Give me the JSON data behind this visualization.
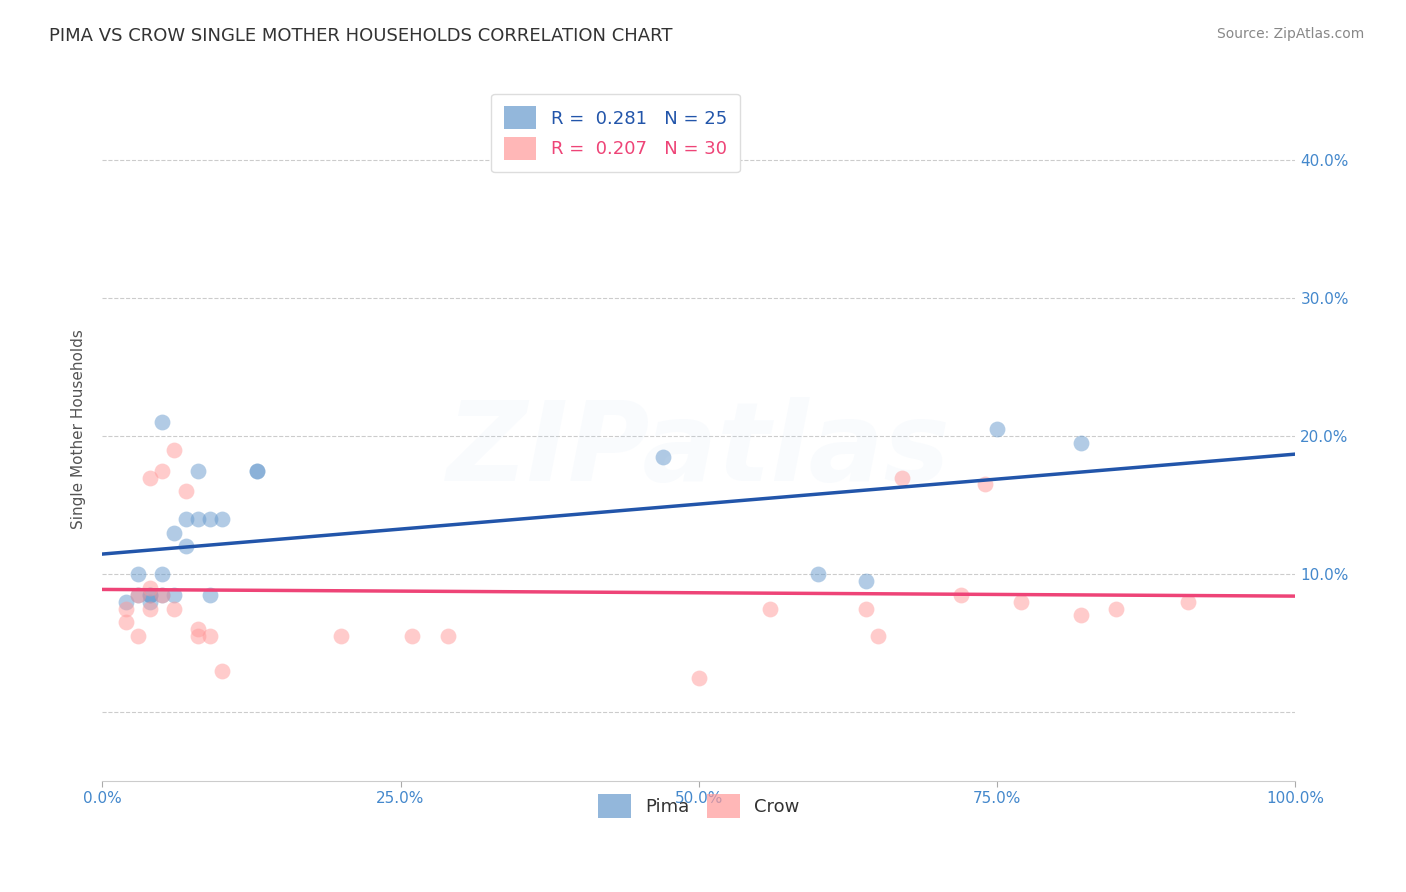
{
  "title": "PIMA VS CROW SINGLE MOTHER HOUSEHOLDS CORRELATION CHART",
  "source_text": "Source: ZipAtlas.com",
  "ylabel": "Single Mother Households",
  "xlim": [
    0,
    1
  ],
  "ylim": [
    -0.05,
    0.46
  ],
  "ytick_values": [
    0.0,
    0.1,
    0.2,
    0.3,
    0.4
  ],
  "ytick_labels_right": [
    "",
    "10.0%",
    "20.0%",
    "30.0%",
    "40.0%"
  ],
  "xtick_labels": [
    "0.0%",
    "25.0%",
    "50.0%",
    "75.0%",
    "100.0%"
  ],
  "xtick_values": [
    0.0,
    0.25,
    0.5,
    0.75,
    1.0
  ],
  "background_color": "#ffffff",
  "grid_color": "#cccccc",
  "pima_color": "#6699cc",
  "crow_color": "#ff9999",
  "pima_line_color": "#2255aa",
  "crow_line_color": "#ee4477",
  "pima_R": 0.281,
  "pima_N": 25,
  "crow_R": 0.207,
  "crow_N": 30,
  "legend_pima_color": "#2255aa",
  "legend_crow_color": "#ee4477",
  "pima_x": [
    0.02,
    0.03,
    0.03,
    0.04,
    0.04,
    0.04,
    0.05,
    0.05,
    0.05,
    0.06,
    0.06,
    0.07,
    0.07,
    0.08,
    0.08,
    0.09,
    0.09,
    0.1,
    0.13,
    0.13,
    0.47,
    0.6,
    0.64,
    0.75,
    0.82
  ],
  "pima_y": [
    0.08,
    0.085,
    0.1,
    0.085,
    0.085,
    0.08,
    0.1,
    0.085,
    0.21,
    0.085,
    0.13,
    0.14,
    0.12,
    0.14,
    0.175,
    0.14,
    0.085,
    0.14,
    0.175,
    0.175,
    0.185,
    0.1,
    0.095,
    0.205,
    0.195
  ],
  "crow_x": [
    0.02,
    0.02,
    0.03,
    0.03,
    0.04,
    0.04,
    0.04,
    0.05,
    0.05,
    0.06,
    0.06,
    0.07,
    0.08,
    0.08,
    0.09,
    0.1,
    0.2,
    0.26,
    0.29,
    0.5,
    0.56,
    0.64,
    0.65,
    0.67,
    0.72,
    0.74,
    0.77,
    0.82,
    0.85,
    0.91
  ],
  "crow_y": [
    0.075,
    0.065,
    0.085,
    0.055,
    0.075,
    0.09,
    0.17,
    0.085,
    0.175,
    0.19,
    0.075,
    0.16,
    0.055,
    0.06,
    0.055,
    0.03,
    0.055,
    0.055,
    0.055,
    0.025,
    0.075,
    0.075,
    0.055,
    0.17,
    0.085,
    0.165,
    0.08,
    0.07,
    0.075,
    0.08
  ],
  "marker_size": 130,
  "marker_alpha": 0.5,
  "title_fontsize": 13,
  "axis_label_fontsize": 11,
  "tick_fontsize": 11,
  "legend_fontsize": 13,
  "watermark_text": "ZIPatlas",
  "watermark_alpha": 0.07,
  "watermark_fontsize": 80
}
